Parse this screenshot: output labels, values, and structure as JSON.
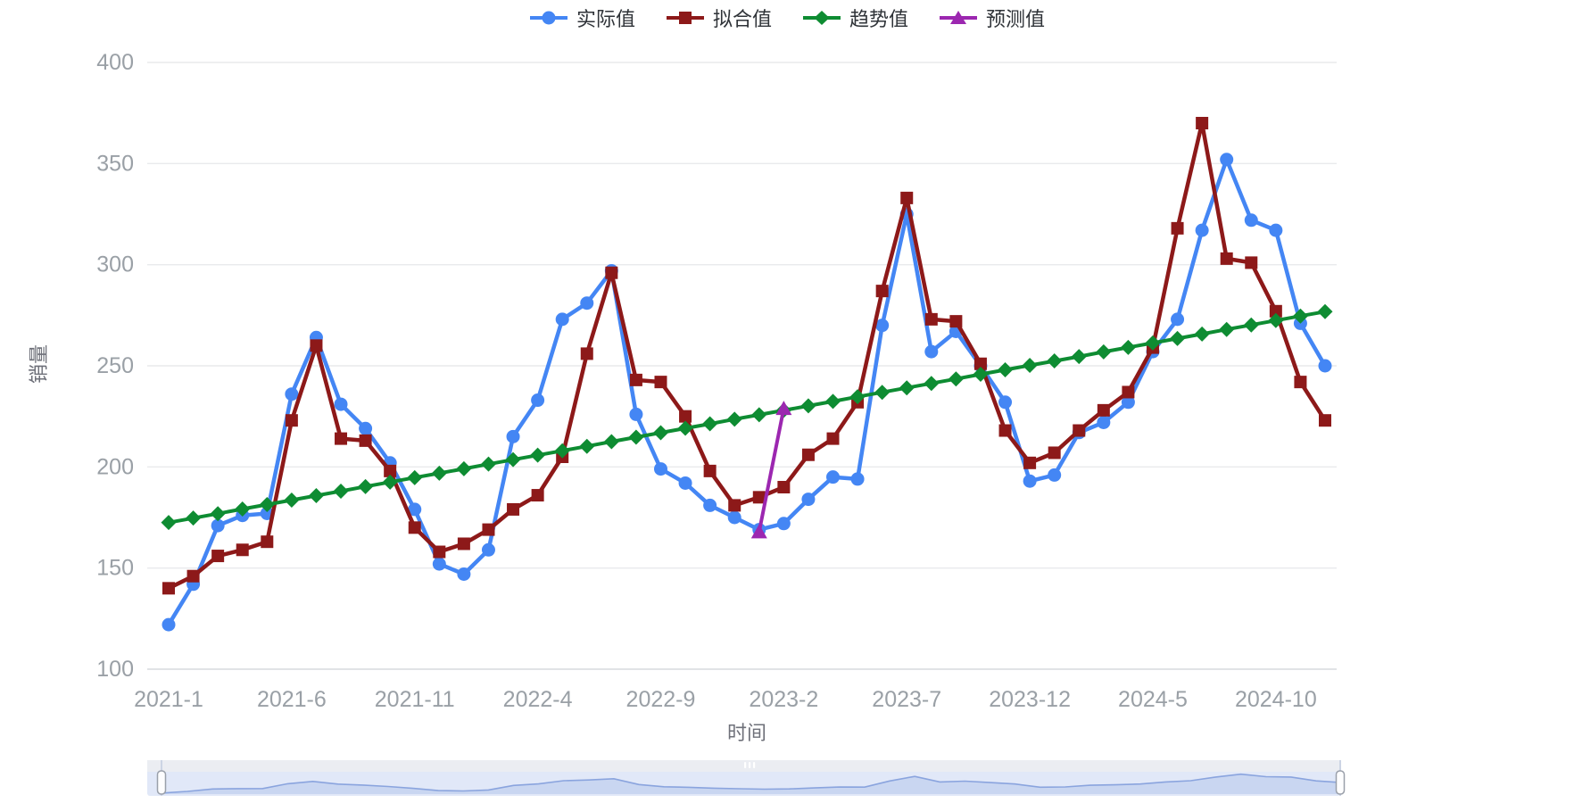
{
  "chart": {
    "y_axis": {
      "title": "销量",
      "ticks": [
        100,
        150,
        200,
        250,
        300,
        350,
        400
      ]
    },
    "x_axis": {
      "title": "时间",
      "shown_indices": [
        0,
        5,
        10,
        15,
        20,
        25,
        30,
        35,
        40,
        45
      ],
      "shown_tick_labels": [
        "2021-1",
        "2021-6",
        "2021-11",
        "2022-4",
        "2022-9",
        "2023-2",
        "2023-7",
        "2023-12",
        "2024-5",
        "2024-10"
      ]
    }
  },
  "chart_data": {
    "type": "line",
    "title": "",
    "xlabel": "时间",
    "ylabel": "销量",
    "ylim": [
      100,
      400
    ],
    "grid": true,
    "legend_position": "top",
    "x": [
      "2021-1",
      "2021-2",
      "2021-3",
      "2021-4",
      "2021-5",
      "2021-6",
      "2021-7",
      "2021-8",
      "2021-9",
      "2021-10",
      "2021-11",
      "2021-12",
      "2022-1",
      "2022-2",
      "2022-3",
      "2022-4",
      "2022-5",
      "2022-6",
      "2022-7",
      "2022-8",
      "2022-9",
      "2022-10",
      "2022-11",
      "2022-12",
      "2023-1",
      "2023-2",
      "2023-3",
      "2023-4",
      "2023-5",
      "2023-6",
      "2023-7",
      "2023-8",
      "2023-9",
      "2023-10",
      "2023-11",
      "2023-12",
      "2024-1",
      "2024-2",
      "2024-3",
      "2024-4",
      "2024-5",
      "2024-6",
      "2024-7",
      "2024-8",
      "2024-9",
      "2024-10",
      "2024-11",
      "2024-12"
    ],
    "series": [
      {
        "key": "actual",
        "name": "实际值",
        "symbol": "circle",
        "color": "#4486f4",
        "line_width": 4.5,
        "values": [
          122,
          142,
          171,
          176,
          177,
          236,
          264,
          231,
          219,
          202,
          179,
          152,
          147,
          159,
          215,
          233,
          273,
          281,
          297,
          226,
          199,
          192,
          181,
          175,
          169,
          172,
          184,
          195,
          194,
          270,
          325,
          257,
          267,
          250,
          232,
          193,
          196,
          217,
          222,
          232,
          257,
          273,
          317,
          352,
          322,
          317,
          271,
          250
        ]
      },
      {
        "key": "fitted",
        "name": "拟合值",
        "symbol": "square",
        "color": "#8d1919",
        "line_width": 4.5,
        "values": [
          140,
          146,
          156,
          159,
          163,
          223,
          260,
          214,
          213,
          198,
          170,
          158,
          162,
          169,
          179,
          186,
          205,
          256,
          296,
          243,
          242,
          225,
          198,
          181,
          185,
          190,
          206,
          214,
          232,
          287,
          333,
          273,
          272,
          251,
          218,
          202,
          207,
          218,
          228,
          237,
          259,
          318,
          370,
          303,
          301,
          277,
          242,
          223
        ]
      },
      {
        "key": "trend",
        "name": "趋势值",
        "symbol": "diamond",
        "color": "#0e8c32",
        "line_width": 4,
        "values": [
          172.5,
          174.7,
          176.9,
          179.2,
          181.4,
          183.6,
          185.8,
          188.0,
          190.3,
          192.5,
          194.7,
          196.9,
          199.1,
          201.4,
          203.6,
          205.8,
          208.0,
          210.2,
          212.5,
          214.7,
          216.9,
          219.1,
          221.3,
          223.6,
          225.8,
          228.0,
          230.2,
          232.4,
          234.7,
          236.9,
          239.1,
          241.3,
          243.5,
          245.8,
          248.0,
          250.2,
          252.4,
          254.6,
          256.9,
          259.1,
          261.3,
          263.5,
          265.7,
          268.0,
          270.2,
          272.4,
          274.6,
          276.8
        ]
      },
      {
        "key": "forecast",
        "name": "预测值",
        "symbol": "triangle",
        "color": "#9c27b0",
        "line_width": 4,
        "values": [
          null,
          null,
          null,
          null,
          null,
          null,
          null,
          null,
          null,
          null,
          null,
          null,
          null,
          null,
          null,
          null,
          null,
          null,
          null,
          null,
          null,
          null,
          null,
          null,
          168,
          229,
          null,
          null,
          null,
          null,
          null,
          null,
          null,
          null,
          null,
          null,
          null,
          null,
          null,
          null,
          null,
          null,
          null,
          null,
          null,
          null,
          null,
          null
        ]
      }
    ],
    "style": {
      "grid": "#e9eaec",
      "axis_line": "#d7dade",
      "axis_label": "#9aa0a6",
      "axis_title": "#6e7079",
      "legend_text": "#2f3338"
    },
    "datazoom_style": {
      "bg": "#e1e8f8",
      "strip": "#ebedf2",
      "shadow_fill": "#c9d6f1",
      "shadow_line": "#8aa4de",
      "handle_fill": "#fdfdfe",
      "handle_border": "#9aa0aa",
      "handle_line": "#ccd4e4"
    }
  }
}
